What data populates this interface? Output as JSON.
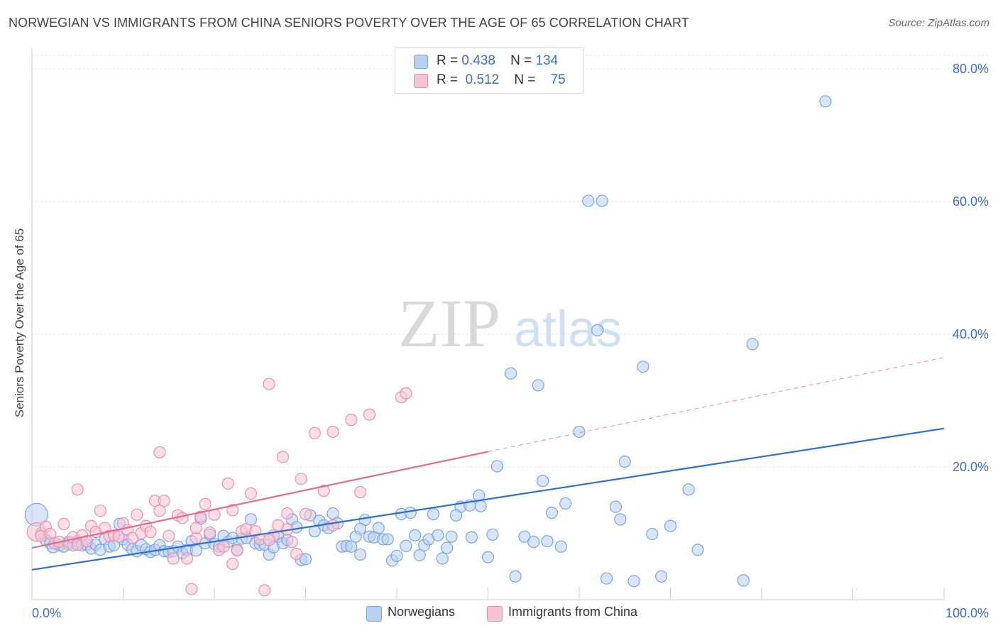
{
  "header": {
    "title": "NORWEGIAN VS IMMIGRANTS FROM CHINA SENIORS POVERTY OVER THE AGE OF 65 CORRELATION CHART",
    "source": "Source: ZipAtlas.com"
  },
  "watermark": {
    "zip": "ZIP",
    "atlas": "atlas"
  },
  "stats": {
    "norwegians": {
      "r_label": "R =",
      "r": "0.438",
      "n_label": "N =",
      "n": "134"
    },
    "china": {
      "r_label": "R =",
      "r": "0.512",
      "n_label": "N =",
      "n": "75"
    }
  },
  "colors": {
    "blue_fill": "#b8d0f2",
    "blue_stroke": "#7aa4de",
    "blue_line": "#2f6fd1",
    "pink_fill": "#f7c4d4",
    "pink_stroke": "#e98fac",
    "pink_line": "#e26b93",
    "axis_text": "#3a6fc4",
    "grid": "#e6e6e6"
  },
  "chart_data": {
    "type": "scatter",
    "title": "NORWEGIAN VS IMMIGRANTS FROM CHINA SENIORS POVERTY OVER THE AGE OF 65 CORRELATION CHART",
    "xlabel": "",
    "ylabel": "Seniors Poverty Over the Age of 65",
    "xlim": [
      0,
      100
    ],
    "ylim": [
      0,
      80
    ],
    "x_tick_labels": [
      "0.0%",
      "100.0%"
    ],
    "y_ticks": [
      20,
      40,
      60,
      80
    ],
    "y_tick_labels": [
      "20.0%",
      "40.0%",
      "60.0%",
      "80.0%"
    ],
    "grid": true,
    "legend_placement": "bottom-center",
    "series": [
      {
        "name": "Norwegians",
        "color": "#b8d0f2",
        "trend": {
          "x0": 0,
          "y0": 4.5,
          "x1": 100,
          "y1": 25.8
        },
        "points": [
          [
            0.5,
            12.8
          ],
          [
            1,
            10
          ],
          [
            1.5,
            9
          ],
          [
            2,
            8.5
          ],
          [
            2.3,
            7.9
          ],
          [
            3,
            8.2
          ],
          [
            3.5,
            8
          ],
          [
            4,
            8.7
          ],
          [
            4.5,
            8.2
          ],
          [
            5,
            8.8
          ],
          [
            5.5,
            8.2
          ],
          [
            6,
            8.3
          ],
          [
            6.5,
            7.7
          ],
          [
            7,
            8.3
          ],
          [
            7.5,
            7.5
          ],
          [
            8,
            9.1
          ],
          [
            8.5,
            8
          ],
          [
            9,
            8.2
          ],
          [
            9.6,
            11.4
          ],
          [
            10,
            9.1
          ],
          [
            10.5,
            8.3
          ],
          [
            11,
            7.6
          ],
          [
            11.5,
            7.3
          ],
          [
            12,
            8.2
          ],
          [
            12.5,
            7.6
          ],
          [
            13,
            7.2
          ],
          [
            13.5,
            7.5
          ],
          [
            14,
            8.2
          ],
          [
            14.5,
            7.3
          ],
          [
            15,
            7.2
          ],
          [
            15.5,
            7.3
          ],
          [
            16,
            8
          ],
          [
            16.5,
            7
          ],
          [
            17,
            7.5
          ],
          [
            17.5,
            8.8
          ],
          [
            18,
            7.4
          ],
          [
            18.5,
            12.2
          ],
          [
            19,
            8.5
          ],
          [
            19.5,
            9.8
          ],
          [
            20,
            8.4
          ],
          [
            20.5,
            8
          ],
          [
            21,
            9.6
          ],
          [
            21.5,
            8.7
          ],
          [
            22,
            9.3
          ],
          [
            22.5,
            7.5
          ],
          [
            23,
            9.2
          ],
          [
            23.5,
            9.3
          ],
          [
            24,
            12.1
          ],
          [
            24.5,
            8.5
          ],
          [
            25,
            8.3
          ],
          [
            25.5,
            8.3
          ],
          [
            26,
            6.8
          ],
          [
            26.5,
            7.9
          ],
          [
            27,
            9.5
          ],
          [
            27.5,
            8.5
          ],
          [
            28,
            9
          ],
          [
            28.5,
            12.1
          ],
          [
            29,
            10.9
          ],
          [
            29.5,
            6
          ],
          [
            30,
            6.1
          ],
          [
            30.5,
            12.7
          ],
          [
            31,
            10.3
          ],
          [
            31.5,
            11.9
          ],
          [
            32,
            11.2
          ],
          [
            32.5,
            10.8
          ],
          [
            33,
            13
          ],
          [
            33.5,
            11.5
          ],
          [
            34,
            8
          ],
          [
            34.5,
            8.1
          ],
          [
            35,
            8
          ],
          [
            35.5,
            9.5
          ],
          [
            36,
            6.8
          ],
          [
            36.5,
            12
          ],
          [
            37,
            9.5
          ],
          [
            37.5,
            9.4
          ],
          [
            38,
            10.8
          ],
          [
            38.5,
            9.1
          ],
          [
            39,
            9.1
          ],
          [
            39.5,
            5.9
          ],
          [
            40,
            6.6
          ],
          [
            40.5,
            12.9
          ],
          [
            41,
            8.1
          ],
          [
            41.5,
            13.1
          ],
          [
            42,
            9.7
          ],
          [
            42.5,
            6.7
          ],
          [
            43,
            8.2
          ],
          [
            43.5,
            9.1
          ],
          [
            44,
            12.9
          ],
          [
            44.5,
            9.7
          ],
          [
            45,
            6.2
          ],
          [
            45.5,
            7.8
          ],
          [
            46,
            9.5
          ],
          [
            47,
            14
          ],
          [
            48,
            14.2
          ],
          [
            48.2,
            9.4
          ],
          [
            49,
            15.7
          ],
          [
            49.2,
            14.1
          ],
          [
            50,
            6.4
          ],
          [
            50.5,
            9.8
          ],
          [
            51,
            20.1
          ],
          [
            52.5,
            34.1
          ],
          [
            53,
            3.5
          ],
          [
            54,
            9.5
          ],
          [
            55,
            8.7
          ],
          [
            55.5,
            32.3
          ],
          [
            56,
            17.9
          ],
          [
            56.5,
            8.8
          ],
          [
            57,
            13.1
          ],
          [
            58,
            8
          ],
          [
            58.5,
            14.5
          ],
          [
            60,
            25.3
          ],
          [
            61,
            60.1
          ],
          [
            62,
            40.6
          ],
          [
            62.5,
            60.1
          ],
          [
            63,
            3.2
          ],
          [
            64,
            14
          ],
          [
            64.5,
            12.1
          ],
          [
            65,
            20.8
          ],
          [
            66,
            2.8
          ],
          [
            67,
            35.1
          ],
          [
            68,
            9.9
          ],
          [
            69,
            3.5
          ],
          [
            70,
            11.1
          ],
          [
            72,
            16.6
          ],
          [
            73,
            7.5
          ],
          [
            78,
            2.9
          ],
          [
            79,
            38.5
          ],
          [
            87,
            75.1
          ],
          [
            36,
            10.7
          ],
          [
            46.5,
            12.7
          ]
        ]
      },
      {
        "name": "Immigrants from China",
        "color": "#f7c4d4",
        "trend": {
          "x0": 0,
          "y0": 7.8,
          "x1": 50,
          "y1": 22.3,
          "dash_x1": 100,
          "dash_y1": 36.5
        },
        "points": [
          [
            0.5,
            10.2
          ],
          [
            1,
            9.6
          ],
          [
            1.5,
            11
          ],
          [
            2,
            9.9
          ],
          [
            2.5,
            8.5
          ],
          [
            3,
            8.7
          ],
          [
            3.5,
            11.4
          ],
          [
            4,
            8.4
          ],
          [
            4.5,
            9.4
          ],
          [
            5,
            8.3
          ],
          [
            5.5,
            9.7
          ],
          [
            6,
            8.8
          ],
          [
            6.5,
            11.1
          ],
          [
            7,
            10.2
          ],
          [
            7.5,
            13.4
          ],
          [
            8,
            10.8
          ],
          [
            8.5,
            9.6
          ],
          [
            9,
            9.7
          ],
          [
            9.5,
            9.5
          ],
          [
            10,
            11.5
          ],
          [
            10.5,
            10.5
          ],
          [
            11,
            9.3
          ],
          [
            11.5,
            12.8
          ],
          [
            12,
            10
          ],
          [
            12.5,
            11.1
          ],
          [
            13,
            10.2
          ],
          [
            13.5,
            14.9
          ],
          [
            14,
            13.4
          ],
          [
            14.5,
            14.9
          ],
          [
            15,
            9.6
          ],
          [
            15.5,
            6.2
          ],
          [
            16,
            12.7
          ],
          [
            16.5,
            12.3
          ],
          [
            17,
            6.2
          ],
          [
            17.5,
            1.6
          ],
          [
            18,
            9.3
          ],
          [
            18.5,
            12.5
          ],
          [
            19,
            14.4
          ],
          [
            19.5,
            10.1
          ],
          [
            20,
            12.8
          ],
          [
            20.5,
            7.5
          ],
          [
            21,
            8
          ],
          [
            21.5,
            17.5
          ],
          [
            22,
            5.4
          ],
          [
            22.5,
            7.4
          ],
          [
            23,
            10.3
          ],
          [
            23.5,
            10.6
          ],
          [
            24,
            16
          ],
          [
            24.5,
            10.3
          ],
          [
            25,
            9.1
          ],
          [
            25.5,
            1.4
          ],
          [
            26,
            32.5
          ],
          [
            26.5,
            9.7
          ],
          [
            27,
            11.2
          ],
          [
            27.5,
            21.5
          ],
          [
            28,
            10.6
          ],
          [
            28.5,
            8.7
          ],
          [
            29,
            6.9
          ],
          [
            29.5,
            18.2
          ],
          [
            30,
            12.9
          ],
          [
            31,
            25.1
          ],
          [
            32,
            16.4
          ],
          [
            33,
            25.3
          ],
          [
            35,
            27.1
          ],
          [
            36,
            16.2
          ],
          [
            37,
            27.9
          ],
          [
            40.5,
            30.5
          ],
          [
            41,
            31.1
          ],
          [
            5,
            16.6
          ],
          [
            14,
            22.2
          ],
          [
            18,
            10.8
          ],
          [
            22,
            13.5
          ],
          [
            26,
            9
          ],
          [
            28,
            13
          ],
          [
            33,
            11.2
          ]
        ]
      }
    ]
  },
  "legend": {
    "items": [
      "Norwegians",
      "Immigrants from China"
    ]
  }
}
